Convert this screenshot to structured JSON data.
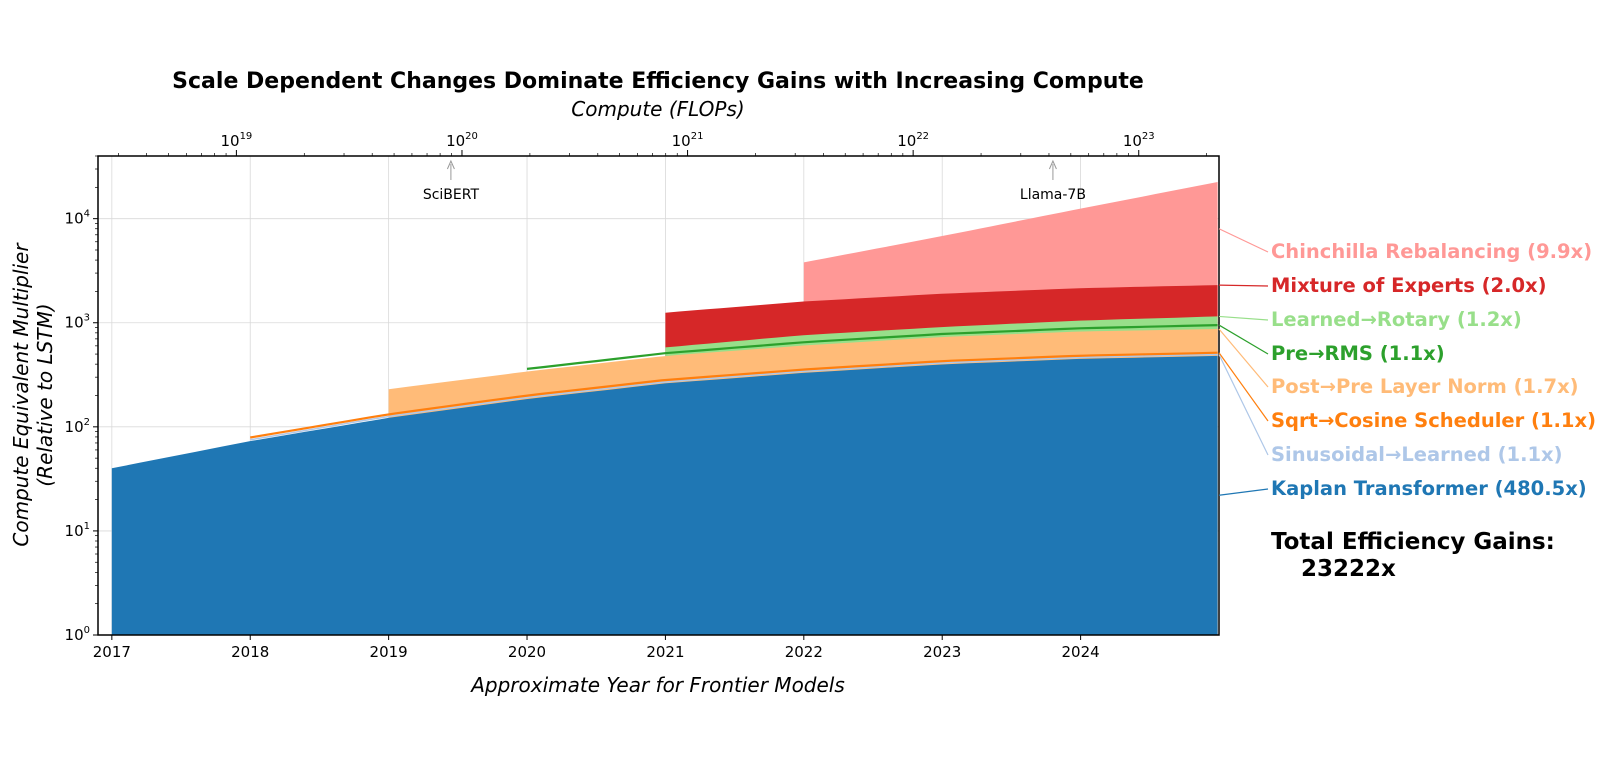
{
  "chart_data": {
    "type": "area",
    "title": "Scale Dependent Changes Dominate Efficiency Gains with Increasing Compute",
    "xlabel": "Approximate Year for Frontier Models",
    "ylabel_line1": "Compute Equivalent Multiplier",
    "ylabel_line2": "(Relative to LSTM)",
    "top_xlabel": "Compute (FLOPs)",
    "y_scale": "log",
    "ylim": [
      1,
      40000
    ],
    "xlim": [
      2016.9,
      2025.0
    ],
    "x_ticks": [
      "2017",
      "2018",
      "2019",
      "2020",
      "2021",
      "2022",
      "2023",
      "2024"
    ],
    "y_ticks": [
      {
        "base": "10",
        "exp": "0"
      },
      {
        "base": "10",
        "exp": "1"
      },
      {
        "base": "10",
        "exp": "2"
      },
      {
        "base": "10",
        "exp": "3"
      },
      {
        "base": "10",
        "exp": "4"
      }
    ],
    "top_ticks": [
      {
        "year": 2017.9,
        "base": "10",
        "exp": "19"
      },
      {
        "year": 2019.53,
        "base": "10",
        "exp": "20"
      },
      {
        "year": 2021.16,
        "base": "10",
        "exp": "21"
      },
      {
        "year": 2022.79,
        "base": "10",
        "exp": "22"
      },
      {
        "year": 2024.42,
        "base": "10",
        "exp": "23"
      }
    ],
    "grid": true,
    "annotations": [
      {
        "label": "SciBERT",
        "year": 2019.45
      },
      {
        "label": "Llama-7B",
        "year": 2023.8
      }
    ],
    "series": [
      {
        "name": "Kaplan Transformer (480.5x)",
        "color": "#1f77b4",
        "start": 2017.0,
        "style": "fill",
        "points": [
          [
            2017.0,
            40
          ],
          [
            2018.0,
            73
          ],
          [
            2019.0,
            122
          ],
          [
            2020.0,
            185
          ],
          [
            2021.0,
            262
          ],
          [
            2022.0,
            330
          ],
          [
            2023.0,
            398
          ],
          [
            2024.0,
            450
          ],
          [
            2024.99,
            480
          ]
        ]
      },
      {
        "name": "Sinusoidal→Learned (1.1x)",
        "color": "#aec7e8",
        "start": 2018.0,
        "style": "thin",
        "points": [
          [
            2018.0,
            75
          ],
          [
            2019.0,
            126
          ],
          [
            2020.0,
            192
          ],
          [
            2021.0,
            270
          ],
          [
            2022.0,
            342
          ],
          [
            2023.0,
            412
          ],
          [
            2024.0,
            465
          ],
          [
            2024.99,
            495
          ]
        ]
      },
      {
        "name": "Sqrt→Cosine Scheduler (1.1x)",
        "color": "#ff7f0e",
        "start": 2018.0,
        "style": "line",
        "points": [
          [
            2018.0,
            79
          ],
          [
            2019.0,
            132
          ],
          [
            2020.0,
            200
          ],
          [
            2021.0,
            282
          ],
          [
            2022.0,
            355
          ],
          [
            2023.0,
            428
          ],
          [
            2024.0,
            483
          ],
          [
            2024.99,
            515
          ]
        ]
      },
      {
        "name": "Post→Pre Layer Norm (1.7x)",
        "color": "#ffbb78",
        "start": 2019.0,
        "style": "fill",
        "points": [
          [
            2019.0,
            230
          ],
          [
            2020.0,
            340
          ],
          [
            2021.0,
            480
          ],
          [
            2022.0,
            605
          ],
          [
            2023.0,
            730
          ],
          [
            2024.0,
            825
          ],
          [
            2024.99,
            870
          ]
        ]
      },
      {
        "name": "Pre→RMS (1.1x)",
        "color": "#2ca02c",
        "start": 2020.0,
        "style": "line",
        "points": [
          [
            2020.0,
            360
          ],
          [
            2021.0,
            510
          ],
          [
            2022.0,
            650
          ],
          [
            2023.0,
            780
          ],
          [
            2024.0,
            885
          ],
          [
            2024.99,
            950
          ]
        ]
      },
      {
        "name": "Learned→Rotary (1.2x)",
        "color": "#98df8a",
        "start": 2021.0,
        "style": "fill",
        "points": [
          [
            2021.0,
            580
          ],
          [
            2022.0,
            760
          ],
          [
            2023.0,
            910
          ],
          [
            2024.0,
            1050
          ],
          [
            2024.99,
            1150
          ]
        ]
      },
      {
        "name": "Mixture of Experts (2.0x)",
        "color": "#d62728",
        "start": 2021.0,
        "style": "fill",
        "points": [
          [
            2021.0,
            1250
          ],
          [
            2022.0,
            1600
          ],
          [
            2023.0,
            1900
          ],
          [
            2024.0,
            2150
          ],
          [
            2024.99,
            2300
          ]
        ]
      },
      {
        "name": "Chinchilla Rebalancing (9.9x)",
        "color": "#ff9896",
        "start": 2022.0,
        "style": "fill",
        "points": [
          [
            2022.0,
            3800
          ],
          [
            2023.0,
            6800
          ],
          [
            2024.0,
            12500
          ],
          [
            2024.99,
            22500
          ]
        ]
      }
    ],
    "total_label_line1": "Total Efficiency Gains:",
    "total_label_line2": "23222x"
  }
}
